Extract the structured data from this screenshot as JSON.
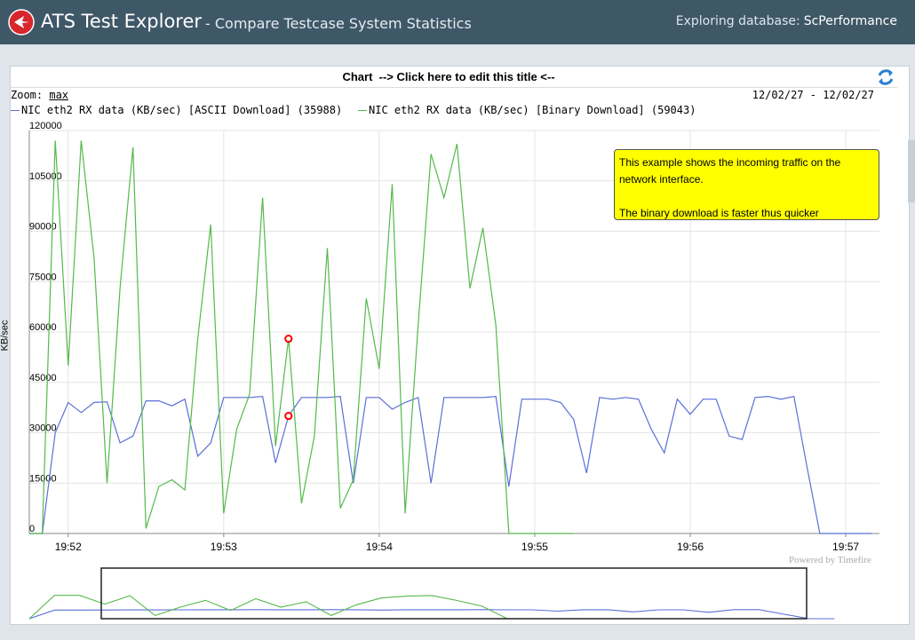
{
  "header": {
    "app_title": "ATS Test Explorer",
    "subtitle": "- Compare Testcase System Statistics",
    "db_label": "Exploring database:",
    "db_name": "ScPerformance"
  },
  "chart_header": {
    "title": "Chart  --> Click here to edit this title <--",
    "zoom_label": "Zoom:",
    "zoom_value": "max",
    "date_range": "12/02/27 - 12/02/27",
    "powered_by": "Powered by Timefire",
    "annotation_line1": "This example shows the incoming traffic on the network interface.",
    "annotation_line2": "The binary download is faster thus quicker"
  },
  "icons": {
    "logo": "app-logo-icon",
    "refresh": "refresh-icon"
  },
  "colors": {
    "header_bg": "#3f5868",
    "ascii_series": "#5b6fd6",
    "binary_series": "#55b94b",
    "annotation_bg": "#ffff00",
    "marker": "#ff0000"
  },
  "chart_data": {
    "type": "line",
    "title": "Chart  --> Click here to edit this title <--",
    "xlabel": "",
    "ylabel": "KB/sec",
    "ylim": [
      0,
      120000
    ],
    "xlim": [
      "19:51:45",
      "19:57:13"
    ],
    "x_ticks": [
      "19:52",
      "19:53",
      "19:54",
      "19:55",
      "19:56",
      "19:57"
    ],
    "y_ticks": [
      0,
      15000,
      30000,
      45000,
      60000,
      75000,
      90000,
      105000,
      120000
    ],
    "grid": true,
    "legend": "top-left",
    "series": [
      {
        "name": "NIC eth2 RX data (KB/sec) [ASCII Download] (35988)",
        "color": "#5b6fd6",
        "x": [
          "19:51:45",
          "19:51:50",
          "19:51:55",
          "19:52:00",
          "19:52:05",
          "19:52:10",
          "19:52:15",
          "19:52:20",
          "19:52:25",
          "19:52:30",
          "19:52:35",
          "19:52:40",
          "19:52:45",
          "19:52:50",
          "19:52:55",
          "19:53:00",
          "19:53:05",
          "19:53:10",
          "19:53:15",
          "19:53:20",
          "19:53:25",
          "19:53:30",
          "19:53:35",
          "19:53:40",
          "19:53:45",
          "19:53:50",
          "19:53:55",
          "19:54:00",
          "19:54:05",
          "19:54:10",
          "19:54:15",
          "19:54:20",
          "19:54:25",
          "19:54:30",
          "19:54:35",
          "19:54:40",
          "19:54:45",
          "19:54:50",
          "19:54:55",
          "19:55:00",
          "19:55:05",
          "19:55:10",
          "19:55:15",
          "19:55:20",
          "19:55:25",
          "19:55:30",
          "19:55:35",
          "19:55:40",
          "19:55:45",
          "19:55:50",
          "19:55:55",
          "19:56:00",
          "19:56:05",
          "19:56:10",
          "19:56:15",
          "19:56:20",
          "19:56:25",
          "19:56:30",
          "19:56:35",
          "19:56:40",
          "19:56:45",
          "19:56:50",
          "19:56:55",
          "19:57:00",
          "19:57:05",
          "19:57:10"
        ],
        "values": [
          0,
          0,
          30000,
          39000,
          36000,
          39000,
          39200,
          27000,
          29000,
          39500,
          39500,
          38000,
          40000,
          23000,
          27000,
          40500,
          40500,
          40500,
          40800,
          21000,
          35000,
          40500,
          40500,
          40500,
          40800,
          15000,
          40500,
          40500,
          37000,
          39000,
          40500,
          15000,
          40500,
          40500,
          40500,
          40500,
          40800,
          14000,
          40000,
          40000,
          40000,
          39000,
          34000,
          18000,
          40500,
          40000,
          40500,
          40000,
          31000,
          24000,
          40000,
          35500,
          40000,
          40000,
          29000,
          28000,
          40500,
          40800,
          40000,
          40800,
          20000,
          0,
          0,
          0,
          0,
          0
        ]
      },
      {
        "name": "NIC eth2 RX data (KB/sec) [Binary Download] (59043)",
        "color": "#55b94b",
        "x": [
          "19:51:45",
          "19:51:50",
          "19:51:55",
          "19:52:00",
          "19:52:05",
          "19:52:10",
          "19:52:15",
          "19:52:20",
          "19:52:25",
          "19:52:30",
          "19:52:35",
          "19:52:40",
          "19:52:45",
          "19:52:50",
          "19:52:55",
          "19:53:00",
          "19:53:05",
          "19:53:10",
          "19:53:15",
          "19:53:20",
          "19:53:25",
          "19:53:30",
          "19:53:35",
          "19:53:40",
          "19:53:45",
          "19:53:50",
          "19:53:55",
          "19:54:00",
          "19:54:05",
          "19:54:10",
          "19:54:15",
          "19:54:20",
          "19:54:25",
          "19:54:30",
          "19:54:35",
          "19:54:40",
          "19:54:45",
          "19:54:50",
          "19:54:55",
          "19:55:00",
          "19:55:05",
          "19:55:10",
          "19:55:15"
        ],
        "values": [
          0,
          0,
          117000,
          50000,
          117000,
          82000,
          15000,
          73000,
          115000,
          1500,
          14000,
          16000,
          13000,
          58000,
          92000,
          6000,
          31000,
          41500,
          100000,
          26000,
          58000,
          9000,
          29000,
          85000,
          7500,
          16000,
          70000,
          49000,
          104000,
          6000,
          62000,
          113000,
          100000,
          116000,
          73000,
          91000,
          62000,
          0,
          0,
          0,
          0,
          0,
          0
        ]
      }
    ],
    "markers": [
      {
        "x": "19:53:25",
        "y": 58000,
        "series": "Binary Download"
      },
      {
        "x": "19:53:25",
        "y": 35000,
        "series": "ASCII Download"
      }
    ]
  }
}
